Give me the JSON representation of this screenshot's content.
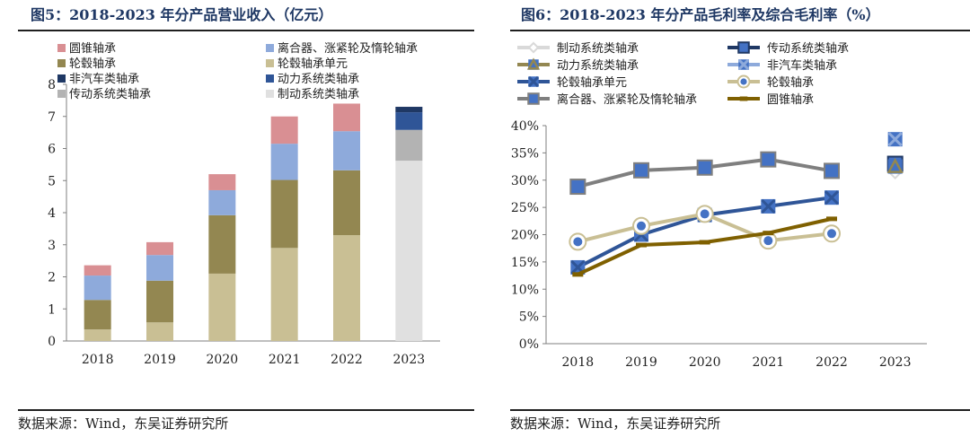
{
  "left": {
    "title": "图5：2018-2023 年分产品营业收入（亿元）",
    "source": "数据来源：Wind，东吴证券研究所"
  },
  "right": {
    "title": "图6：2018-2023 年分产品毛利率及综合毛利率（%）",
    "source": "数据来源：Wind，东吴证券研究所"
  },
  "chart_data": [
    {
      "type": "bar",
      "stacked": true,
      "title": "图5：2018-2023 年分产品营业收入（亿元）",
      "categories": [
        "2018",
        "2019",
        "2020",
        "2021",
        "2022",
        "2023"
      ],
      "ylim": [
        0,
        8
      ],
      "yticks": [
        "0",
        "1",
        "2",
        "3",
        "4",
        "5",
        "6",
        "7",
        "8"
      ],
      "legend_position": "top",
      "series": [
        {
          "name": "轮毂轴承单元",
          "color": "#c9bf94",
          "values": [
            0.36,
            0.58,
            2.1,
            2.9,
            3.3,
            null
          ]
        },
        {
          "name": "轮毂轴承",
          "color": "#938751",
          "values": [
            0.92,
            1.3,
            1.82,
            2.12,
            2.02,
            null
          ]
        },
        {
          "name": "离合器、涨紧轮及惰轮轴承",
          "color": "#8eaadb",
          "values": [
            0.76,
            0.8,
            0.78,
            1.13,
            1.22,
            null
          ]
        },
        {
          "name": "圆锥轴承",
          "color": "#d98f93",
          "values": [
            0.32,
            0.4,
            0.5,
            0.85,
            0.86,
            null
          ]
        },
        {
          "name": "制动系统类轴承",
          "color": "#e0e0e0",
          "values": [
            null,
            null,
            null,
            null,
            null,
            5.62
          ]
        },
        {
          "name": "传动系统类轴承",
          "color": "#b3b3b3",
          "values": [
            null,
            null,
            null,
            null,
            null,
            0.96
          ]
        },
        {
          "name": "动力系统类轴承",
          "color": "#2f5597",
          "values": [
            null,
            null,
            null,
            null,
            null,
            0.55
          ]
        },
        {
          "name": "非汽车类轴承",
          "color": "#1f3864",
          "values": [
            null,
            null,
            null,
            null,
            null,
            0.17
          ]
        }
      ],
      "legend_order": [
        "圆锥轴承",
        "离合器、涨紧轮及惰轮轴承",
        "轮毂轴承",
        "轮毂轴承单元",
        "非汽车类轴承",
        "动力系统类轴承",
        "传动系统类轴承",
        "制动系统类轴承"
      ]
    },
    {
      "type": "line",
      "title": "图6：2018-2023 年分产品毛利率及综合毛利率（%）",
      "categories": [
        "2018",
        "2019",
        "2020",
        "2021",
        "2022",
        "2023"
      ],
      "ylim": [
        0,
        40
      ],
      "yunit": "%",
      "yticks": [
        "0%",
        "5%",
        "10%",
        "15%",
        "20%",
        "25%",
        "30%",
        "35%",
        "40%"
      ],
      "legend_position": "top",
      "series": [
        {
          "name": "制动系统类轴承",
          "color": "#d9d9d9",
          "marker": "diamond",
          "values": [
            null,
            null,
            null,
            null,
            null,
            31.5
          ]
        },
        {
          "name": "传动系统类轴承",
          "color": "#1f3864",
          "marker": "square",
          "values": [
            null,
            null,
            null,
            null,
            null,
            33.0
          ]
        },
        {
          "name": "动力系统类轴承",
          "color": "#938751",
          "marker": "triangle",
          "values": [
            null,
            null,
            null,
            null,
            null,
            32.5
          ]
        },
        {
          "name": "非汽车类轴承",
          "color": "#8eaadb",
          "marker": "x",
          "values": [
            null,
            null,
            null,
            null,
            null,
            37.5
          ]
        },
        {
          "name": "轮毂轴承单元",
          "color": "#2f5597",
          "marker": "x",
          "values": [
            14.0,
            20.0,
            23.6,
            25.2,
            26.8,
            null
          ]
        },
        {
          "name": "轮毂轴承",
          "color": "#c9bf94",
          "marker": "circle",
          "values": [
            18.7,
            21.6,
            23.8,
            18.9,
            20.2,
            null
          ]
        },
        {
          "name": "离合器、涨紧轮及惰轮轴承",
          "color": "#7f7f7f",
          "marker": "square",
          "values": [
            28.8,
            31.8,
            32.3,
            33.8,
            31.7,
            null
          ]
        },
        {
          "name": "圆锥轴承",
          "color": "#7f6000",
          "marker": "dash",
          "values": [
            12.7,
            18.1,
            18.6,
            20.3,
            22.9,
            null
          ]
        }
      ],
      "legend_order": [
        "制动系统类轴承",
        "传动系统类轴承",
        "动力系统类轴承",
        "非汽车类轴承",
        "轮毂轴承单元",
        "轮毂轴承",
        "离合器、涨紧轮及惰轮轴承",
        "圆锥轴承"
      ]
    }
  ]
}
